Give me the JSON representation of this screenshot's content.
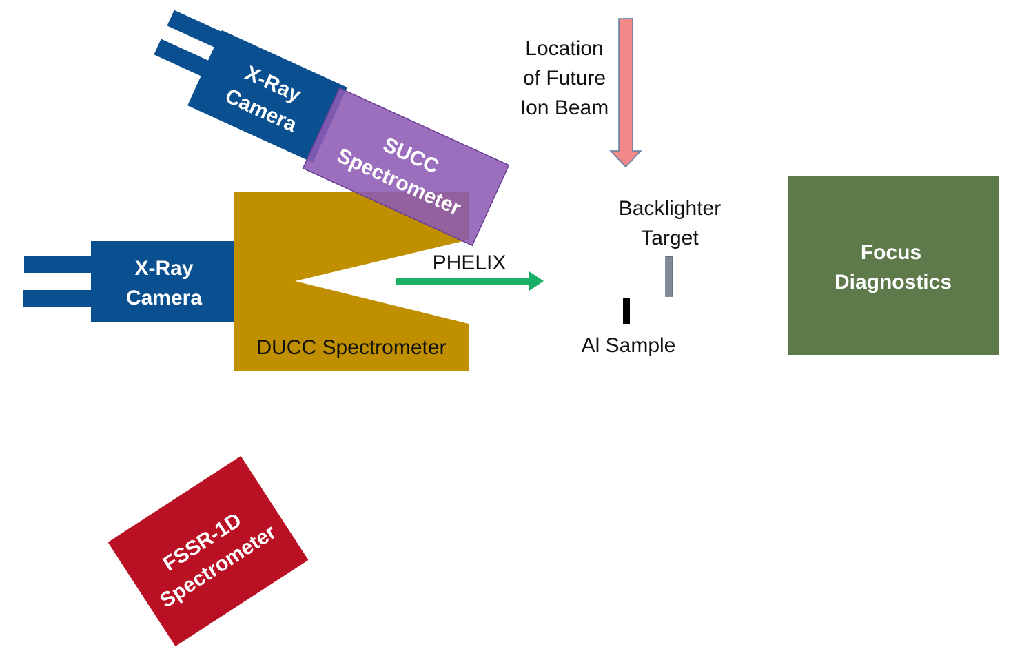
{
  "colors": {
    "camera": "#0a4f8f",
    "succ": "#8e5bb5",
    "ducc": "#bf8f00",
    "fssr": "#b91024",
    "focus": "#5e7a4a",
    "ion_beam": "#f28888",
    "ion_beam_stroke": "#5a7fa0",
    "phelix": "#19b065",
    "backlighter": "#808a94",
    "sample": "#000000"
  },
  "components": {
    "top_camera": {
      "line1": "X-Ray",
      "line2": "Camera"
    },
    "succ": {
      "line1": "SUCC",
      "line2": "Spectrometer"
    },
    "left_camera": {
      "line1": "X-Ray",
      "line2": "Camera"
    },
    "ducc": {
      "label": "DUCC Spectrometer"
    },
    "fssr": {
      "line1": "FSSR-1D",
      "line2": "Spectrometer"
    },
    "focus": {
      "line1": "Focus",
      "line2": "Diagnostics"
    }
  },
  "labels": {
    "ion_beam": {
      "line1": "Location",
      "line2": "of Future",
      "line3": "Ion Beam"
    },
    "phelix": "PHELIX",
    "backlighter": {
      "line1": "Backlighter",
      "line2": "Target"
    },
    "sample": "Al Sample"
  }
}
